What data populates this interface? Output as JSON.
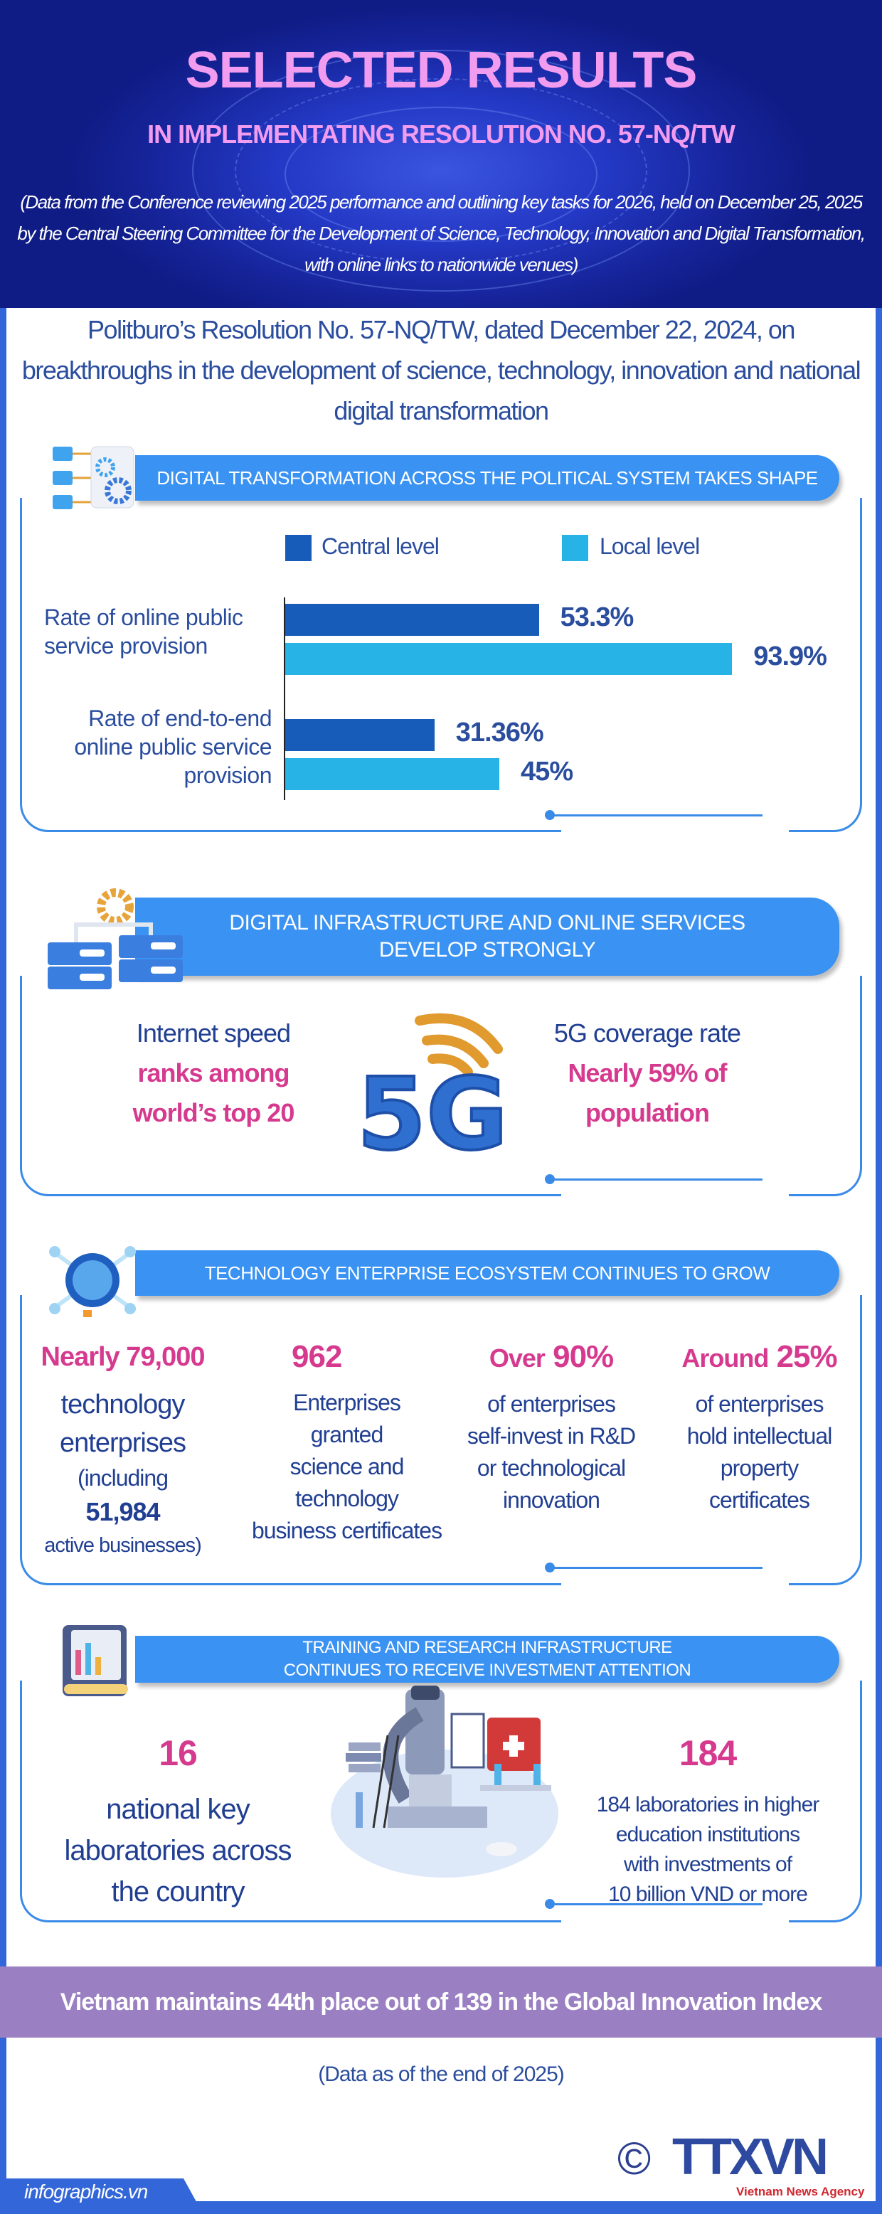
{
  "header": {
    "title": "SELECTED RESULTS",
    "subtitle": "IN IMPLEMENTATING RESOLUTION NO. 57-NQ/TW",
    "intro": "(Data from the Conference reviewing 2025 performance and outlining key tasks for 2026, held on December 25, 2025 by the Central Steering Committee for the Development of Science, Technology, Innovation and Digital Transformation, with online links to nationwide venues)"
  },
  "resolution": "Politburo’s Resolution No. 57-NQ/TW, dated December 22, 2024, on breakthroughs in the development of science, technology, innovation and national digital transformation",
  "section1": {
    "banner": "DIGITAL TRANSFORMATION ACROSS THE POLITICAL SYSTEM TAKES SHAPE",
    "chart_data": {
      "type": "bar",
      "orientation": "horizontal",
      "categories": [
        "Rate of online public service provision",
        "Rate of end-to-end online public service provision"
      ],
      "series": [
        {
          "name": "Central level",
          "values": [
            53.3,
            31.36
          ],
          "labels": [
            "53.3%",
            "31.36%"
          ],
          "color": "#165cb8"
        },
        {
          "name": "Local level",
          "values": [
            93.9,
            45
          ],
          "labels": [
            "93.9%",
            "45%"
          ],
          "color": "#28b3e6"
        }
      ],
      "unit": "%",
      "legend": "top"
    }
  },
  "section2": {
    "banner_line1": "DIGITAL INFRASTRUCTURE AND ONLINE SERVICES",
    "banner_line2": "DEVELOP STRONGLY",
    "left": {
      "label": "Internet speed",
      "value_line1": "ranks among",
      "value_line2": "world’s top 20"
    },
    "graphic_text": "5G",
    "right": {
      "label": "5G coverage rate",
      "value_line1": "Nearly 59% of",
      "value_line2": "population"
    }
  },
  "section3": {
    "banner": "TECHNOLOGY ENTERPRISE ECOSYSTEM CONTINUES TO GROW",
    "items": [
      {
        "value": "Nearly 79,000",
        "lines": [
          "technology",
          "enterprises",
          "(including"
        ],
        "sub_value": "51,984",
        "tail": "active businesses)"
      },
      {
        "value": "962",
        "lines": [
          "Enterprises",
          "granted",
          "science and",
          "technology",
          "business certificates"
        ]
      },
      {
        "prefix": "Over",
        "value": "90%",
        "lines": [
          "of enterprises",
          "self-invest in R&D",
          "or technological",
          "innovation"
        ]
      },
      {
        "prefix": "Around",
        "value": "25%",
        "lines": [
          "of enterprises",
          "hold intellectual",
          "property",
          "certificates"
        ]
      }
    ]
  },
  "section4": {
    "banner_line1": "TRAINING AND RESEARCH INFRASTRUCTURE",
    "banner_line2": "CONTINUES TO RECEIVE INVESTMENT ATTENTION",
    "left": {
      "value": "16",
      "lines": [
        "national key",
        "laboratories across",
        "the country"
      ]
    },
    "right": {
      "value": "184",
      "lines": [
        "184 laboratories in higher",
        "education institutions",
        "with investments of",
        "10 billion VND or more"
      ]
    }
  },
  "gii": "Vietnam maintains 44th place out of 139 in the Global Innovation Index",
  "as_of": "(Data as of the end of 2025)",
  "footer": {
    "site": "infographics.vn",
    "copyright": "©",
    "logo": "TTXVN",
    "logo_sub": "Vietnam News Agency"
  },
  "colors": {
    "header": "#1a2ba8",
    "title": "#f29cf0",
    "banner": "#3a92f2",
    "accent_pink": "#d63a8f",
    "text_navy": "#213f92",
    "purple_bar": "#9a7fc2",
    "frame": "#3366d8"
  }
}
